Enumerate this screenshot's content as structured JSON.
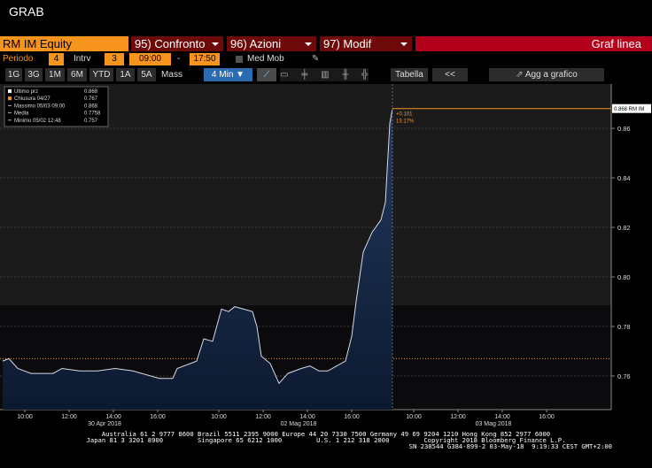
{
  "header": {
    "title": "GRAB"
  },
  "toolbar": {
    "security": "RM IM Equity",
    "tabs": [
      "95) Confronto",
      "96) Azioni",
      "97) Modif"
    ],
    "chart_type": "Graf linea"
  },
  "settings": {
    "period_label": "Periodo",
    "period": 4,
    "interval_label": "Intrv",
    "interval": 3,
    "start": "09:00",
    "dash": "-",
    "end": "17:50",
    "moving_avg": "Med Mob"
  },
  "buttons": {
    "ranges": [
      "1G",
      "3G",
      "1M",
      "6M",
      "YTD",
      "1A",
      "5A",
      "Mass"
    ],
    "frequency": "4 Min ▼",
    "table": "Tabella",
    "back": "<<",
    "add": "Agg a grafico"
  },
  "chart_data": {
    "type": "line",
    "color": "#d4dae4",
    "legend": [
      {
        "label": "Ultimo prz",
        "value": 0.868,
        "color": "#ffffff"
      },
      {
        "label": "Chiusura 04/27",
        "value": 0.767,
        "color": "#f7941d"
      },
      {
        "label": "Massimo 05/03 09:00",
        "value": 0.868
      },
      {
        "label": "Media",
        "value": 0.7758
      },
      {
        "label": "Minimo 05/02 12:48",
        "value": 0.757
      }
    ],
    "x": [
      0,
      0.28,
      0.68,
      1.28,
      2.28,
      2.68,
      3.48,
      4.28,
      5.08,
      5.88,
      6.28,
      7.08,
      7.68,
      7.88,
      8.48,
      8.76,
      9.08,
      9.48,
      9.88,
      10.2,
      10.48,
      10.88,
      11.28,
      11.48,
      11.68,
      12.08,
      12.48,
      12.88,
      13.48,
      13.88,
      14.28,
      14.68,
      15.08,
      15.48,
      15.76,
      15.96,
      16.28,
      16.68,
      17.08,
      17.28,
      17.48,
      17.6
    ],
    "values": [
      0.766,
      0.767,
      0.763,
      0.761,
      0.761,
      0.763,
      0.762,
      0.762,
      0.763,
      0.762,
      0.761,
      0.759,
      0.759,
      0.763,
      0.765,
      0.766,
      0.775,
      0.774,
      0.787,
      0.786,
      0.788,
      0.787,
      0.786,
      0.78,
      0.768,
      0.765,
      0.757,
      0.761,
      0.763,
      0.764,
      0.762,
      0.762,
      0.764,
      0.766,
      0.776,
      0.79,
      0.81,
      0.818,
      0.823,
      0.83,
      0.862,
      0.868
    ],
    "xlim": [
      -0.12,
      27.48
    ],
    "ylim": [
      0.7464,
      0.8779
    ],
    "yticks": [
      0.76,
      0.78,
      {
        "value": 0.8,
        "label": "0.80"
      },
      0.82,
      0.84,
      0.86
    ],
    "xticks": [
      {
        "value": 1,
        "label": "10:00"
      },
      {
        "value": 3,
        "label": "12:00"
      },
      {
        "value": 5,
        "label": "14:00"
      },
      {
        "value": 7,
        "label": "16:00"
      },
      {
        "value": 9.76,
        "label": "10:00"
      },
      {
        "value": 11.76,
        "label": "12:00"
      },
      {
        "value": 13.76,
        "label": "14:00"
      },
      {
        "value": 15.76,
        "label": "16:00"
      },
      {
        "value": 18.56,
        "label": "10:00"
      },
      {
        "value": 20.56,
        "label": "12:00"
      },
      {
        "value": 22.56,
        "label": "14:00"
      },
      {
        "value": 24.56,
        "label": "16:00"
      }
    ],
    "day_labels": [
      "30 Apr 2018",
      "02 Mag 2018",
      "03 Mag 2018"
    ],
    "grid": true,
    "last_label": "0.868 RM IM",
    "annotations": [
      "+0.101",
      "13.17%"
    ]
  },
  "footer": {
    "lines": [
      "Australia 61 2 9777 8600 Brazil 5511 2395 9000 Europe 44 20 7330 7500 Germany 49 69 9204 1210 Hong Kong 852 2977 6000",
      "Japan 81 3 3201 8900         Singapore 65 6212 1000         U.S. 1 212 318 2000         Copyright 2018 Bloomberg Finance L.P.",
      "SN 238544 G384-899-2 03-May-18  9:19:33 CEST GMT+2:00"
    ]
  }
}
